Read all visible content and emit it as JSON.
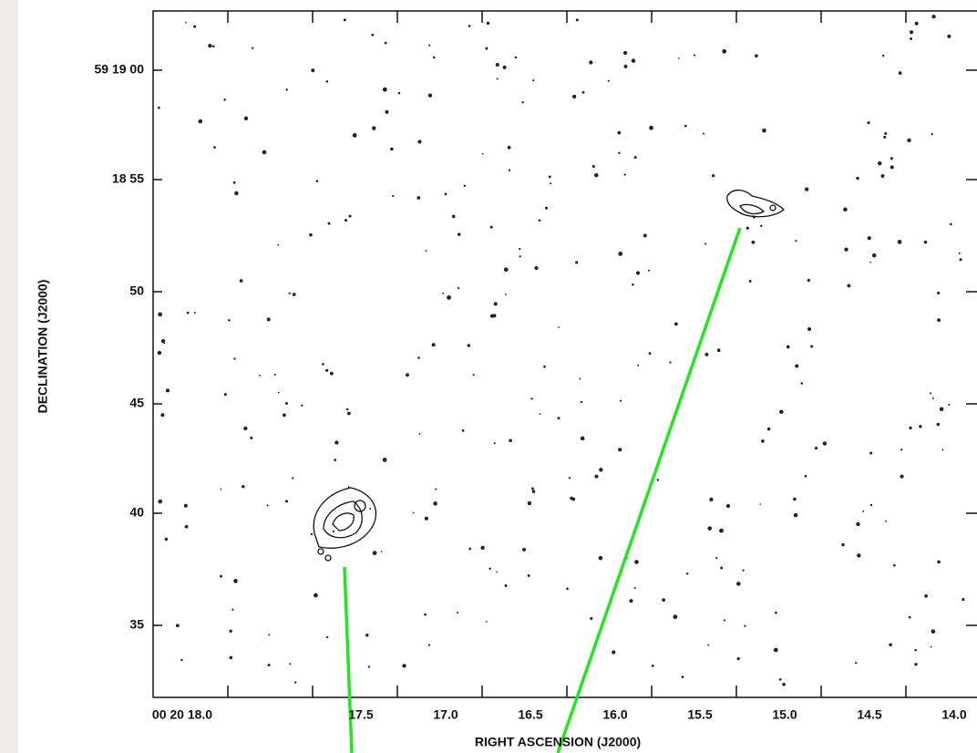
{
  "plot": {
    "y_axis_label": "DECLINATION (J2000)",
    "x_axis_label": "RIGHT ASCENSION (J2000)",
    "y_tick_labels": [
      "59 19 00",
      "18 55",
      "50",
      "45",
      "40",
      "35"
    ],
    "x_tick_labels": [
      "00 20 18.0",
      "17.5",
      "17.0",
      "16.5",
      "16.0",
      "15.5",
      "15.0",
      "14.5",
      "14.0"
    ]
  }
}
